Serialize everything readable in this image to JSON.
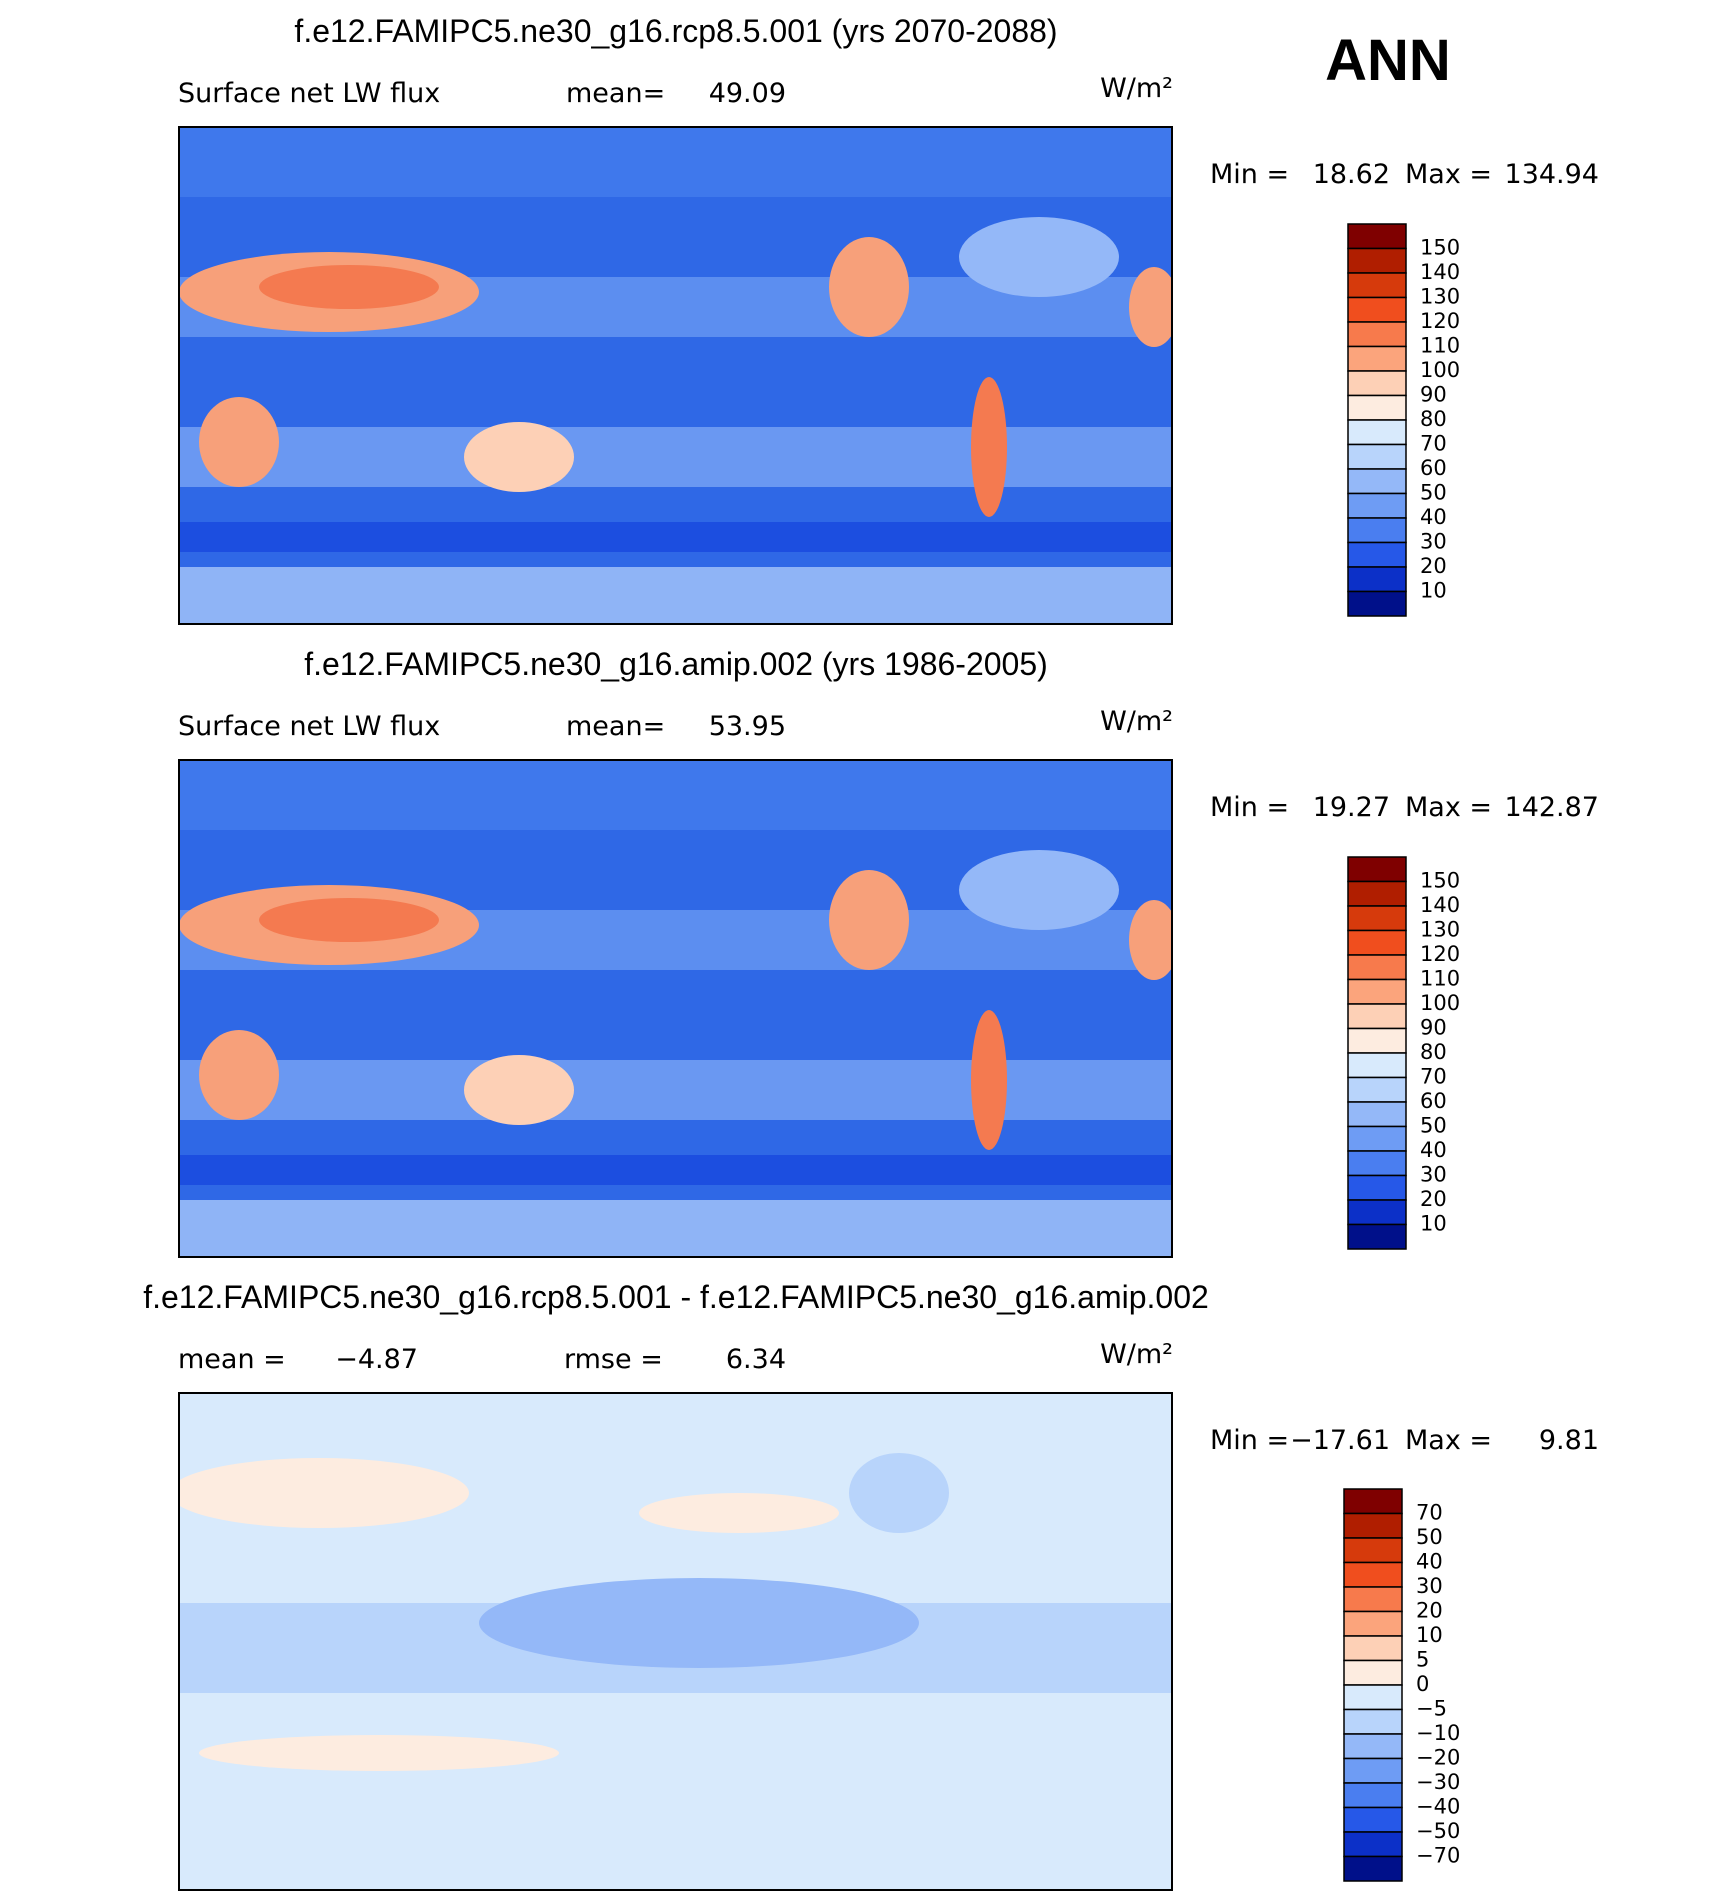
{
  "header": {
    "label": "ANN"
  },
  "colorbar_colors": [
    "#7f0000",
    "#b01e00",
    "#d63a0c",
    "#f04e1e",
    "#f77a4c",
    "#fba47c",
    "#fdd0b6",
    "#fdece0",
    "#d8eafc",
    "#b8d4fb",
    "#94b8f8",
    "#6e9cf4",
    "#4a7ef0",
    "#2658e8",
    "#0c30c8",
    "#00108a"
  ],
  "panels": [
    {
      "title": "f.e12.FAMIPC5.ne30_g16.rcp8.5.001 (yrs 2070-2088)",
      "field": "Surface net LW flux",
      "stat1_label": "mean=",
      "stat1": "49.09",
      "units": "W/m²",
      "min_label": "Min =",
      "min": "18.62",
      "max_label": "Max =",
      "max": "134.94",
      "colorbar_labels": [
        "150",
        "140",
        "130",
        "120",
        "110",
        "100",
        "90",
        "80",
        "70",
        "60",
        "50",
        "40",
        "30",
        "20",
        "10"
      ]
    },
    {
      "title": "f.e12.FAMIPC5.ne30_g16.amip.002 (yrs 1986-2005)",
      "field": "Surface net LW flux",
      "stat1_label": "mean=",
      "stat1": "53.95",
      "units": "W/m²",
      "min_label": "Min =",
      "min": "19.27",
      "max_label": "Max =",
      "max": "142.87",
      "colorbar_labels": [
        "150",
        "140",
        "130",
        "120",
        "110",
        "100",
        "90",
        "80",
        "70",
        "60",
        "50",
        "40",
        "30",
        "20",
        "10"
      ]
    },
    {
      "title": "f.e12.FAMIPC5.ne30_g16.rcp8.5.001 - f.e12.FAMIPC5.ne30_g16.amip.002",
      "stat1_label": "mean =",
      "stat1": "−4.87",
      "stat2_label": "rmse =",
      "stat2": "6.34",
      "units": "W/m²",
      "min_label": "Min =",
      "min": "−17.61",
      "max_label": "Max =",
      "max": "9.81",
      "colorbar_labels": [
        "70",
        "50",
        "40",
        "30",
        "20",
        "10",
        "5",
        "0",
        "−5",
        "−10",
        "−20",
        "−30",
        "−40",
        "−50",
        "−70"
      ]
    }
  ]
}
